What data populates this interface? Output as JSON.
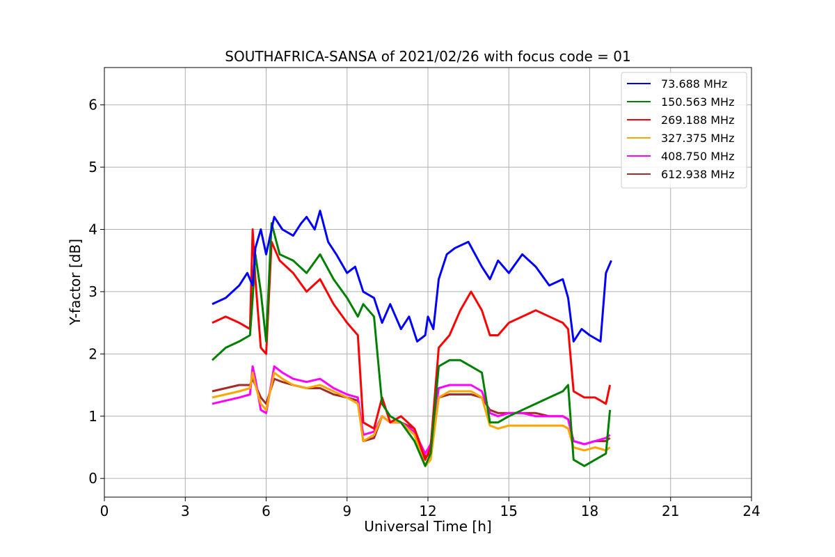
{
  "chart_data": {
    "type": "line",
    "title": "SOUTHAFRICA-SANSA of 2021/02/26 with focus code = 01",
    "xlabel": "Universal Time [h]",
    "ylabel": "Y-factor [dB]",
    "xlim": [
      0,
      24
    ],
    "ylim": [
      -0.3,
      6.6
    ],
    "xticks": [
      0,
      3,
      6,
      9,
      12,
      15,
      18,
      21,
      24
    ],
    "yticks": [
      0,
      1,
      2,
      3,
      4,
      5,
      6
    ],
    "grid": true,
    "legend_position": "top-right",
    "series": [
      {
        "name": "  73.688 MHz",
        "color": "#0000ff",
        "x": [
          4.0,
          4.5,
          5.0,
          5.3,
          5.5,
          5.6,
          5.8,
          6.0,
          6.3,
          6.6,
          7.0,
          7.3,
          7.5,
          7.8,
          8.0,
          8.3,
          8.6,
          9.0,
          9.3,
          9.6,
          10.0,
          10.3,
          10.6,
          11.0,
          11.3,
          11.6,
          11.9,
          12.0,
          12.2,
          12.4,
          12.7,
          13.0,
          13.5,
          14.0,
          14.3,
          14.6,
          15.0,
          15.5,
          16.0,
          16.5,
          17.0,
          17.2,
          17.4,
          17.7,
          18.0,
          18.4,
          18.6,
          18.8
        ],
        "values": [
          2.8,
          2.9,
          3.1,
          3.3,
          3.1,
          3.7,
          4.0,
          3.6,
          4.2,
          4.0,
          3.9,
          4.1,
          4.2,
          4.0,
          4.3,
          3.8,
          3.6,
          3.3,
          3.4,
          3.0,
          2.9,
          2.5,
          2.8,
          2.4,
          2.6,
          2.2,
          2.3,
          2.6,
          2.4,
          3.2,
          3.6,
          3.7,
          3.8,
          3.4,
          3.2,
          3.5,
          3.3,
          3.6,
          3.4,
          3.1,
          3.2,
          2.9,
          2.2,
          2.4,
          2.3,
          2.2,
          3.3,
          3.5
        ]
      },
      {
        "name": "150.563 MHz",
        "color": "#008000",
        "x": [
          4.0,
          4.5,
          5.0,
          5.4,
          5.5,
          5.6,
          5.8,
          6.0,
          6.2,
          6.5,
          7.0,
          7.5,
          8.0,
          8.5,
          9.0,
          9.4,
          9.6,
          10.0,
          10.3,
          10.6,
          11.0,
          11.5,
          11.9,
          12.1,
          12.4,
          12.8,
          13.2,
          13.6,
          14.0,
          14.3,
          14.6,
          15.0,
          15.5,
          16.0,
          16.5,
          17.0,
          17.2,
          17.4,
          17.8,
          18.2,
          18.6,
          18.75
        ],
        "values": [
          1.9,
          2.1,
          2.2,
          2.3,
          2.9,
          3.6,
          3.0,
          2.2,
          4.1,
          3.6,
          3.5,
          3.3,
          3.6,
          3.2,
          2.9,
          2.6,
          2.8,
          2.6,
          1.2,
          1.0,
          0.9,
          0.6,
          0.2,
          0.4,
          1.8,
          1.9,
          1.9,
          1.8,
          1.7,
          0.9,
          0.9,
          1.0,
          1.1,
          1.2,
          1.3,
          1.4,
          1.5,
          0.3,
          0.2,
          0.3,
          0.4,
          1.1
        ]
      },
      {
        "name": "269.188 MHz",
        "color": "#ff0000",
        "x": [
          4.0,
          4.5,
          5.0,
          5.4,
          5.5,
          5.6,
          5.8,
          6.0,
          6.2,
          6.5,
          7.0,
          7.5,
          8.0,
          8.5,
          9.0,
          9.4,
          9.6,
          10.0,
          10.3,
          10.6,
          11.0,
          11.5,
          11.9,
          12.1,
          12.4,
          12.8,
          13.2,
          13.6,
          14.0,
          14.3,
          14.6,
          15.0,
          15.5,
          16.0,
          16.5,
          17.0,
          17.2,
          17.4,
          17.8,
          18.2,
          18.6,
          18.75
        ],
        "values": [
          2.5,
          2.6,
          2.5,
          2.4,
          4.0,
          3.2,
          2.1,
          2.0,
          3.8,
          3.5,
          3.3,
          3.0,
          3.2,
          2.8,
          2.5,
          2.3,
          0.9,
          0.8,
          1.3,
          0.9,
          1.0,
          0.8,
          0.3,
          0.5,
          2.1,
          2.3,
          2.7,
          3.0,
          2.7,
          2.3,
          2.3,
          2.5,
          2.6,
          2.7,
          2.6,
          2.5,
          2.4,
          1.4,
          1.3,
          1.3,
          1.2,
          1.5
        ]
      },
      {
        "name": "327.375 MHz",
        "color": "#ffa500",
        "x": [
          4.0,
          4.5,
          5.0,
          5.4,
          5.5,
          5.6,
          5.8,
          6.0,
          6.3,
          6.6,
          7.0,
          7.5,
          8.0,
          8.5,
          9.0,
          9.4,
          9.6,
          10.0,
          10.3,
          10.6,
          11.0,
          11.5,
          11.9,
          12.1,
          12.4,
          12.8,
          13.2,
          13.6,
          14.0,
          14.3,
          14.6,
          15.0,
          15.5,
          16.0,
          16.5,
          17.0,
          17.2,
          17.4,
          17.8,
          18.2,
          18.6,
          18.75
        ],
        "values": [
          1.3,
          1.35,
          1.4,
          1.45,
          1.7,
          1.5,
          1.2,
          1.1,
          1.7,
          1.6,
          1.5,
          1.45,
          1.5,
          1.4,
          1.3,
          1.2,
          0.6,
          0.7,
          1.0,
          0.9,
          0.9,
          0.7,
          0.2,
          0.3,
          1.3,
          1.4,
          1.4,
          1.4,
          1.3,
          0.85,
          0.8,
          0.85,
          0.85,
          0.85,
          0.85,
          0.85,
          0.8,
          0.5,
          0.45,
          0.5,
          0.45,
          0.5
        ]
      },
      {
        "name": "408.750 MHz",
        "color": "#ff00ff",
        "x": [
          4.0,
          4.5,
          5.0,
          5.4,
          5.5,
          5.6,
          5.8,
          6.0,
          6.3,
          6.6,
          7.0,
          7.5,
          8.0,
          8.5,
          9.0,
          9.4,
          9.6,
          10.0,
          10.3,
          10.6,
          11.0,
          11.5,
          11.9,
          12.1,
          12.4,
          12.8,
          13.2,
          13.6,
          14.0,
          14.3,
          14.6,
          15.0,
          15.5,
          16.0,
          16.5,
          17.0,
          17.2,
          17.4,
          17.8,
          18.2,
          18.6,
          18.75
        ],
        "values": [
          1.2,
          1.25,
          1.3,
          1.35,
          1.8,
          1.6,
          1.1,
          1.05,
          1.8,
          1.7,
          1.6,
          1.55,
          1.6,
          1.45,
          1.35,
          1.3,
          0.7,
          0.75,
          1.0,
          0.9,
          0.9,
          0.75,
          0.4,
          0.55,
          1.45,
          1.5,
          1.5,
          1.5,
          1.4,
          1.05,
          1.0,
          1.05,
          1.05,
          1.0,
          1.0,
          1.0,
          0.95,
          0.6,
          0.55,
          0.6,
          0.65,
          0.7
        ]
      },
      {
        "name": "612.938 MHz",
        "color": "#a52a2a",
        "x": [
          4.0,
          4.5,
          5.0,
          5.4,
          5.5,
          5.6,
          5.8,
          6.0,
          6.3,
          6.6,
          7.0,
          7.5,
          8.0,
          8.5,
          9.0,
          9.4,
          9.6,
          10.0,
          10.3,
          10.6,
          11.0,
          11.5,
          11.9,
          12.1,
          12.4,
          12.8,
          13.2,
          13.6,
          14.0,
          14.3,
          14.6,
          15.0,
          15.5,
          16.0,
          16.5,
          17.0,
          17.2,
          17.4,
          17.8,
          18.2,
          18.6,
          18.75
        ],
        "values": [
          1.4,
          1.45,
          1.5,
          1.5,
          1.6,
          1.5,
          1.3,
          1.2,
          1.6,
          1.55,
          1.5,
          1.45,
          1.45,
          1.35,
          1.3,
          1.25,
          0.6,
          0.65,
          1.0,
          0.9,
          0.9,
          0.8,
          0.35,
          0.4,
          1.3,
          1.35,
          1.35,
          1.35,
          1.3,
          1.1,
          1.05,
          1.05,
          1.05,
          1.05,
          1.0,
          1.0,
          0.95,
          0.6,
          0.55,
          0.6,
          0.6,
          0.65
        ]
      }
    ]
  }
}
